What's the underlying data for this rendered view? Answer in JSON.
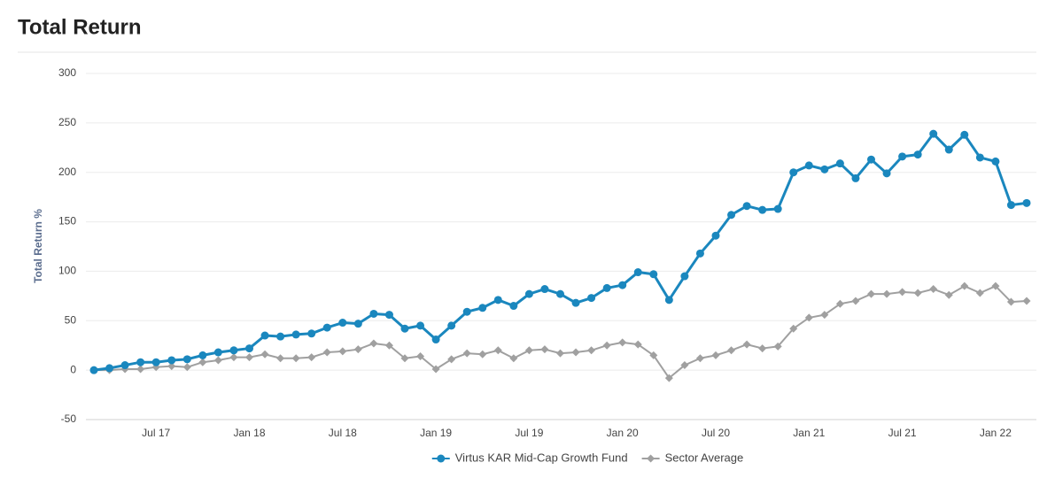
{
  "chart_data": {
    "type": "line",
    "title": "Total Return",
    "y_label": "Total Return %",
    "categories": [
      null,
      null,
      null,
      null,
      "Jul 17",
      null,
      null,
      null,
      null,
      null,
      "Jan 18",
      null,
      null,
      null,
      null,
      null,
      "Jul 18",
      null,
      null,
      null,
      null,
      null,
      "Jan 19",
      null,
      null,
      null,
      null,
      null,
      "Jul 19",
      null,
      null,
      null,
      null,
      null,
      "Jan 20",
      null,
      null,
      null,
      null,
      null,
      "Jul 20",
      null,
      null,
      null,
      null,
      null,
      "Jan 21",
      null,
      null,
      null,
      null,
      null,
      "Jul 21",
      null,
      null,
      null,
      null,
      null,
      "Jan 22",
      null,
      null
    ],
    "series": [
      {
        "name": "Virtus KAR Mid-Cap Growth Fund",
        "color": "#1a87be",
        "marker": "circle",
        "values": [
          0,
          2,
          5,
          8,
          8,
          10,
          11,
          15,
          18,
          20,
          22,
          35,
          34,
          36,
          37,
          43,
          48,
          47,
          57,
          56,
          42,
          45,
          31,
          45,
          59,
          63,
          71,
          65,
          77,
          82,
          77,
          68,
          73,
          83,
          86,
          99,
          97,
          71,
          95,
          118,
          136,
          157,
          166,
          162,
          163,
          200,
          207,
          203,
          209,
          194,
          213,
          199,
          216,
          218,
          239,
          223,
          238,
          215,
          211,
          167,
          169
        ]
      },
      {
        "name": "Sector Average",
        "color": "#a0a0a0",
        "marker": "diamond",
        "values": [
          0,
          0,
          1,
          1,
          3,
          4,
          3,
          8,
          10,
          13,
          13,
          16,
          12,
          12,
          13,
          18,
          19,
          21,
          27,
          25,
          12,
          14,
          1,
          11,
          17,
          16,
          20,
          12,
          20,
          21,
          17,
          18,
          20,
          25,
          28,
          26,
          15,
          -8,
          5,
          12,
          15,
          20,
          26,
          22,
          24,
          42,
          53,
          56,
          67,
          70,
          77,
          77,
          79,
          78,
          82,
          76,
          85,
          78,
          85,
          69,
          70
        ]
      }
    ],
    "ylim": [
      -50,
      300
    ],
    "yticks": [
      -50,
      0,
      50,
      100,
      150,
      200,
      250,
      300
    ],
    "grid": true,
    "legend": "bottom"
  }
}
